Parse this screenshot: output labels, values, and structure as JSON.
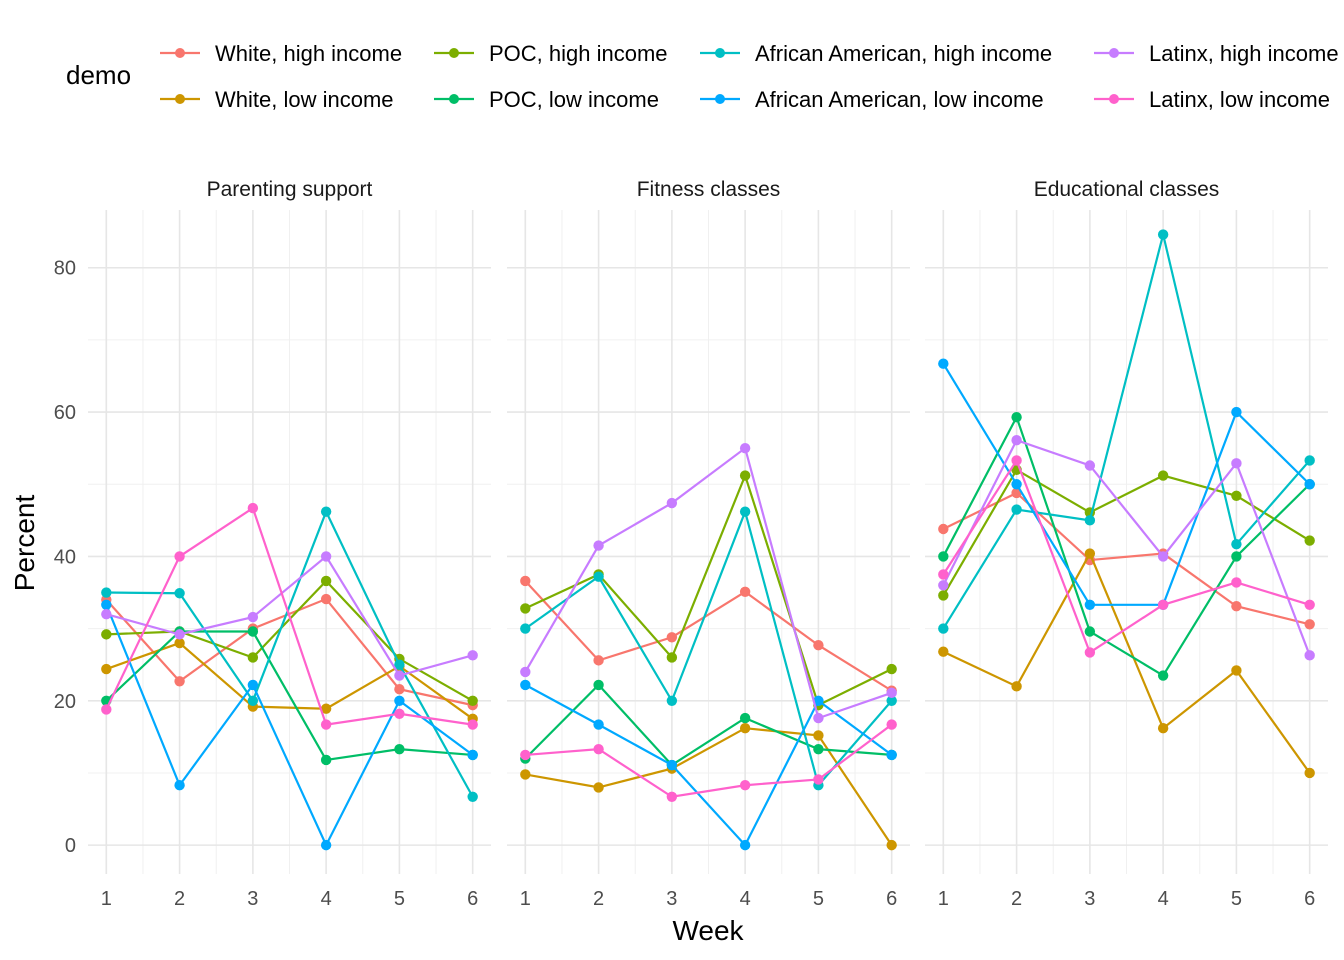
{
  "chart_data": {
    "type": "line",
    "xlabel": "Week",
    "ylabel": "Percent",
    "x": [
      1,
      2,
      3,
      4,
      5,
      6
    ],
    "xticks": [
      "1",
      "2",
      "3",
      "4",
      "5",
      "6"
    ],
    "ylim": [
      -4,
      88
    ],
    "yticks": [
      0,
      20,
      40,
      60,
      80
    ],
    "grid": true,
    "legend": {
      "title": "demo",
      "position": "top",
      "entries": [
        "White, high income",
        "White, low income",
        "POC, high income",
        "POC, low income",
        "African American, high income",
        "African American, low income",
        "Latinx, high income",
        "Latinx, low income"
      ]
    },
    "series_colors": {
      "White, high income": "#F8766D",
      "White, low income": "#CD9600",
      "POC, high income": "#7CAE00",
      "POC, low income": "#00BE67",
      "African American, high income": "#00BFC4",
      "African American, low income": "#00A9FF",
      "Latinx, high income": "#C77CFF",
      "Latinx, low income": "#FF61CC"
    },
    "panels": [
      {
        "title": "Parenting support",
        "series": [
          {
            "name": "White, high income",
            "values": [
              34.0,
              22.7,
              30.0,
              34.1,
              21.6,
              19.4
            ]
          },
          {
            "name": "White, low income",
            "values": [
              24.4,
              28.0,
              19.2,
              18.9,
              24.8,
              17.5
            ]
          },
          {
            "name": "POC, high income",
            "values": [
              29.2,
              29.6,
              26.0,
              36.6,
              25.8,
              20.0
            ]
          },
          {
            "name": "POC, low income",
            "values": [
              20.0,
              29.6,
              29.6,
              11.8,
              13.3,
              12.5
            ]
          },
          {
            "name": "African American, high income",
            "values": [
              35.0,
              34.9,
              20.0,
              46.2,
              25.0,
              6.7
            ]
          },
          {
            "name": "African American, low income",
            "values": [
              33.3,
              8.3,
              22.2,
              0.0,
              20.0,
              12.5
            ]
          },
          {
            "name": "Latinx, high income",
            "values": [
              32.0,
              29.2,
              31.6,
              40.0,
              23.5,
              26.3
            ]
          },
          {
            "name": "Latinx, low income",
            "values": [
              18.8,
              40.0,
              46.7,
              16.7,
              18.2,
              16.7
            ]
          }
        ]
      },
      {
        "title": "Fitness classes",
        "series": [
          {
            "name": "White, high income",
            "values": [
              36.6,
              25.6,
              28.8,
              35.1,
              27.7,
              21.4
            ]
          },
          {
            "name": "White, low income",
            "values": [
              9.8,
              8.0,
              10.6,
              16.2,
              15.2,
              0.0
            ]
          },
          {
            "name": "POC, high income",
            "values": [
              32.8,
              37.5,
              26.0,
              51.2,
              19.4,
              24.4
            ]
          },
          {
            "name": "POC, low income",
            "values": [
              12.0,
              22.2,
              11.1,
              17.6,
              13.3,
              12.5
            ]
          },
          {
            "name": "African American, high income",
            "values": [
              30.0,
              37.2,
              20.0,
              46.2,
              8.3,
              20.0
            ]
          },
          {
            "name": "African American, low income",
            "values": [
              22.2,
              16.7,
              11.1,
              0.0,
              20.0,
              12.5
            ]
          },
          {
            "name": "Latinx, high income",
            "values": [
              24.0,
              41.5,
              47.4,
              55.0,
              17.6,
              21.1
            ]
          },
          {
            "name": "Latinx, low income",
            "values": [
              12.5,
              13.3,
              6.7,
              8.3,
              9.1,
              16.7
            ]
          }
        ]
      },
      {
        "title": "Educational classes",
        "series": [
          {
            "name": "White, high income",
            "values": [
              43.8,
              48.8,
              39.5,
              40.4,
              33.1,
              30.6
            ]
          },
          {
            "name": "White, low income",
            "values": [
              26.8,
              22.0,
              40.4,
              16.2,
              24.2,
              10.0
            ]
          },
          {
            "name": "POC, high income",
            "values": [
              34.6,
              52.0,
              46.1,
              51.2,
              48.4,
              42.2
            ]
          },
          {
            "name": "POC, low income",
            "values": [
              40.0,
              59.3,
              29.6,
              23.5,
              40.0,
              50.0
            ]
          },
          {
            "name": "African American, high income",
            "values": [
              30.0,
              46.5,
              45.0,
              84.6,
              41.7,
              53.3
            ]
          },
          {
            "name": "African American, low income",
            "values": [
              66.7,
              50.0,
              33.3,
              33.3,
              60.0,
              50.0
            ]
          },
          {
            "name": "Latinx, high income",
            "values": [
              36.0,
              56.1,
              52.6,
              40.0,
              52.9,
              26.3
            ]
          },
          {
            "name": "Latinx, low income",
            "values": [
              37.5,
              53.3,
              26.7,
              33.3,
              36.4,
              33.3
            ]
          }
        ]
      }
    ]
  }
}
